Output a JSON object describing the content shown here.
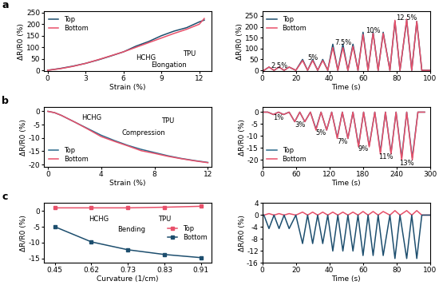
{
  "chart_data": [
    {
      "type": "line",
      "panel": "a",
      "x_label": "Strain (%)",
      "y_label": "ΔR/R0 (%)",
      "x": [
        0,
        1,
        2,
        3,
        4,
        5,
        6,
        7,
        8,
        9,
        10,
        11,
        12,
        12.4
      ],
      "xlim": [
        -0.3,
        13
      ],
      "ylim": [
        -5,
        255
      ],
      "xticks": [
        0,
        3,
        6,
        9,
        12
      ],
      "yticks": [
        0,
        50,
        100,
        150,
        200,
        250
      ],
      "legend": "upper left",
      "series": [
        {
          "name": "Top",
          "color": "#1d4e6e",
          "values": [
            0,
            8,
            18,
            30,
            45,
            62,
            80,
            105,
            125,
            150,
            170,
            185,
            210,
            218
          ]
        },
        {
          "name": "Bottom",
          "color": "#e8506a",
          "values": [
            0,
            7,
            17,
            30,
            46,
            63,
            80,
            100,
            120,
            140,
            160,
            178,
            200,
            225
          ]
        }
      ],
      "annotations": [
        {
          "text": "HCHG",
          "x": 7.8,
          "y": 55
        },
        {
          "text": "TPU",
          "x": 11.2,
          "y": 70
        },
        {
          "text": "Elongation",
          "x": 9.6,
          "y": 22
        }
      ]
    },
    {
      "type": "line",
      "x_label": "Time (s)",
      "y_label": "ΔR/R0 (%)",
      "x": [
        0,
        1,
        4,
        7,
        10,
        13,
        16,
        20,
        24,
        27,
        30,
        33,
        36,
        39,
        42,
        45,
        48,
        51,
        54,
        57,
        60,
        63,
        66,
        69,
        72,
        76,
        79,
        82,
        86,
        89,
        92,
        95,
        100
      ],
      "xlim": [
        0,
        100
      ],
      "ylim": [
        -5,
        270
      ],
      "xticks": [
        0,
        20,
        40,
        60,
        80,
        100
      ],
      "yticks": [
        0,
        50,
        100,
        150,
        200,
        250
      ],
      "legend": "upper left",
      "series": [
        {
          "name": "Top",
          "color": "#1d4e6e",
          "values": [
            0,
            0,
            15,
            0,
            15,
            0,
            15,
            0,
            50,
            0,
            50,
            0,
            50,
            0,
            120,
            0,
            120,
            0,
            120,
            0,
            175,
            0,
            175,
            0,
            175,
            0,
            225,
            0,
            230,
            0,
            225,
            0,
            0
          ]
        },
        {
          "name": "Bottom",
          "color": "#e8506a",
          "values": [
            0,
            0,
            15,
            0,
            15,
            0,
            15,
            0,
            45,
            0,
            45,
            0,
            45,
            0,
            105,
            0,
            105,
            0,
            110,
            0,
            165,
            0,
            170,
            0,
            170,
            0,
            230,
            0,
            235,
            0,
            225,
            0,
            0
          ]
        }
      ],
      "annotations": [
        {
          "text": "2.5%",
          "x": 10,
          "y": 22
        },
        {
          "text": "5%",
          "x": 30,
          "y": 58
        },
        {
          "text": "7.5%",
          "x": 48,
          "y": 128
        },
        {
          "text": "10%",
          "x": 66,
          "y": 182
        },
        {
          "text": "12.5%",
          "x": 86,
          "y": 240
        }
      ]
    },
    {
      "type": "line",
      "panel": "b",
      "x_label": "Strain (%)",
      "y_label": "ΔR/R0 (%)",
      "x": [
        0,
        0.5,
        1,
        2,
        3,
        4,
        5,
        6,
        7,
        8,
        9,
        10,
        11,
        12
      ],
      "xlim": [
        -0.3,
        12.3
      ],
      "ylim": [
        -21,
        1.5
      ],
      "xticks": [
        0,
        4,
        8,
        12
      ],
      "yticks": [
        -20,
        -15,
        -10,
        -5,
        0
      ],
      "legend": "lower left",
      "series": [
        {
          "name": "Top",
          "color": "#2b6a8c",
          "values": [
            0,
            -0.5,
            -1.5,
            -4,
            -6.5,
            -9,
            -11,
            -12.8,
            -14.3,
            -15.5,
            -16.7,
            -17.7,
            -18.5,
            -19.2
          ]
        },
        {
          "name": "Bottom",
          "color": "#e8506a",
          "values": [
            0,
            -0.5,
            -1.5,
            -4,
            -6.7,
            -9.5,
            -11.3,
            -13,
            -14.8,
            -15.8,
            -16.9,
            -17.8,
            -18.6,
            -19.3
          ]
        }
      ],
      "annotations": [
        {
          "text": "HCHG",
          "x": 3.3,
          "y": -2.5
        },
        {
          "text": "TPU",
          "x": 9,
          "y": -3.5
        },
        {
          "text": "Compression",
          "x": 7.2,
          "y": -8
        }
      ]
    },
    {
      "type": "line",
      "x_label": "Time (s)",
      "y_label": "ΔR/R0 (%)",
      "x": [
        0,
        10,
        20,
        29,
        38,
        48,
        58,
        67,
        76,
        86,
        96,
        105,
        115,
        124,
        134,
        143,
        153,
        162,
        172,
        181,
        191,
        201,
        211,
        220,
        230,
        239,
        249,
        258,
        268,
        278,
        290
      ],
      "xlim": [
        0,
        300
      ],
      "ylim": [
        -23,
        2
      ],
      "xticks": [
        0,
        60,
        120,
        180,
        240,
        300
      ],
      "yticks": [
        -20,
        -15,
        -10,
        -5,
        0
      ],
      "legend": "lower left",
      "series": [
        {
          "name": "Top",
          "color": "#2b6a8c",
          "values": [
            0,
            0,
            -1,
            0,
            -1,
            0,
            -4,
            0,
            -4,
            0,
            -7,
            0,
            -7.5,
            0,
            -10.5,
            0,
            -11,
            0,
            -14,
            0,
            -14,
            0,
            -16.5,
            0,
            -17,
            0,
            -19,
            0,
            -19,
            0,
            0
          ]
        },
        {
          "name": "Bottom",
          "color": "#e8506a",
          "values": [
            0,
            0,
            -1,
            0,
            -1,
            0,
            -4,
            0,
            -4,
            0,
            -7.5,
            0,
            -7.5,
            0,
            -11,
            0,
            -11,
            0,
            -14.5,
            0,
            -14.5,
            0,
            -17.5,
            0,
            -17.5,
            0,
            -20,
            0,
            -20,
            0,
            0
          ]
        }
      ],
      "annotations": [
        {
          "text": "1%",
          "x": 29,
          "y": -2.5
        },
        {
          "text": "3%",
          "x": 67,
          "y": -5.5
        },
        {
          "text": "5%",
          "x": 105,
          "y": -8.8
        },
        {
          "text": "7%",
          "x": 143,
          "y": -12.3
        },
        {
          "text": "9%",
          "x": 181,
          "y": -15.5
        },
        {
          "text": "11%",
          "x": 220,
          "y": -18.8
        },
        {
          "text": "13%",
          "x": 258,
          "y": -21.3
        }
      ]
    },
    {
      "type": "line",
      "panel": "c",
      "x_label": "Curvature (1/cm)",
      "y_label": "ΔR/R0 (%)",
      "categories": [
        "0.45",
        "0.62",
        "0.73",
        "0.83",
        "0.91"
      ],
      "ylim": [
        -16.5,
        2.5
      ],
      "yticks": [
        -15,
        -10,
        -5,
        0
      ],
      "legend": "center right",
      "series": [
        {
          "name": "Top",
          "color": "#e8506a",
          "marker": "s",
          "values": [
            1,
            1,
            1,
            1.2,
            1.5
          ]
        },
        {
          "name": "Bottom",
          "color": "#1d4e6e",
          "marker": "s",
          "values": [
            -5,
            -9.8,
            -12.3,
            -13.8,
            -14.8
          ]
        }
      ],
      "annotations": [
        {
          "text": "HCHG",
          "x": 1.2,
          "y": -2.5
        },
        {
          "text": "TPU",
          "x": 3.0,
          "y": -2.5
        },
        {
          "text": "Bending",
          "x": 2.1,
          "y": -6
        }
      ]
    },
    {
      "type": "line",
      "x_label": "Time (s)",
      "y_label": "ΔR/R0 (%)",
      "x": [
        0,
        1,
        4,
        7,
        10,
        13,
        16,
        20,
        24,
        27,
        30,
        33,
        36,
        39,
        42,
        45,
        48,
        51,
        54,
        57,
        60,
        63,
        66,
        69,
        72,
        76,
        79,
        82,
        86,
        89,
        92,
        95,
        100
      ],
      "xlim": [
        0,
        100
      ],
      "ylim": [
        -16,
        4
      ],
      "xticks": [
        0,
        20,
        40,
        60,
        80,
        100
      ],
      "yticks": [
        -16,
        -12,
        -8,
        -4,
        0,
        4
      ],
      "series": [
        {
          "name": "Top",
          "color": "#e8506a",
          "values": [
            0,
            0,
            0.5,
            0,
            0.5,
            0,
            0.5,
            0,
            1,
            0,
            1,
            0,
            1,
            0,
            1,
            0,
            1,
            0,
            1,
            0,
            1.2,
            0,
            1.2,
            0,
            1.2,
            0,
            1.5,
            0,
            1.5,
            0,
            1.5,
            0,
            0
          ]
        },
        {
          "name": "Bottom",
          "color": "#1d4e6e",
          "values": [
            0,
            0,
            -4.5,
            0,
            -4.5,
            0,
            -4.5,
            0,
            -9.5,
            0,
            -9.5,
            0,
            -9.5,
            0,
            -12,
            0,
            -12,
            0,
            -12,
            0,
            -13.5,
            0,
            -13.5,
            0,
            -13.5,
            0,
            -14.5,
            0,
            -14.5,
            0,
            -14.5,
            0,
            0
          ]
        }
      ]
    }
  ]
}
